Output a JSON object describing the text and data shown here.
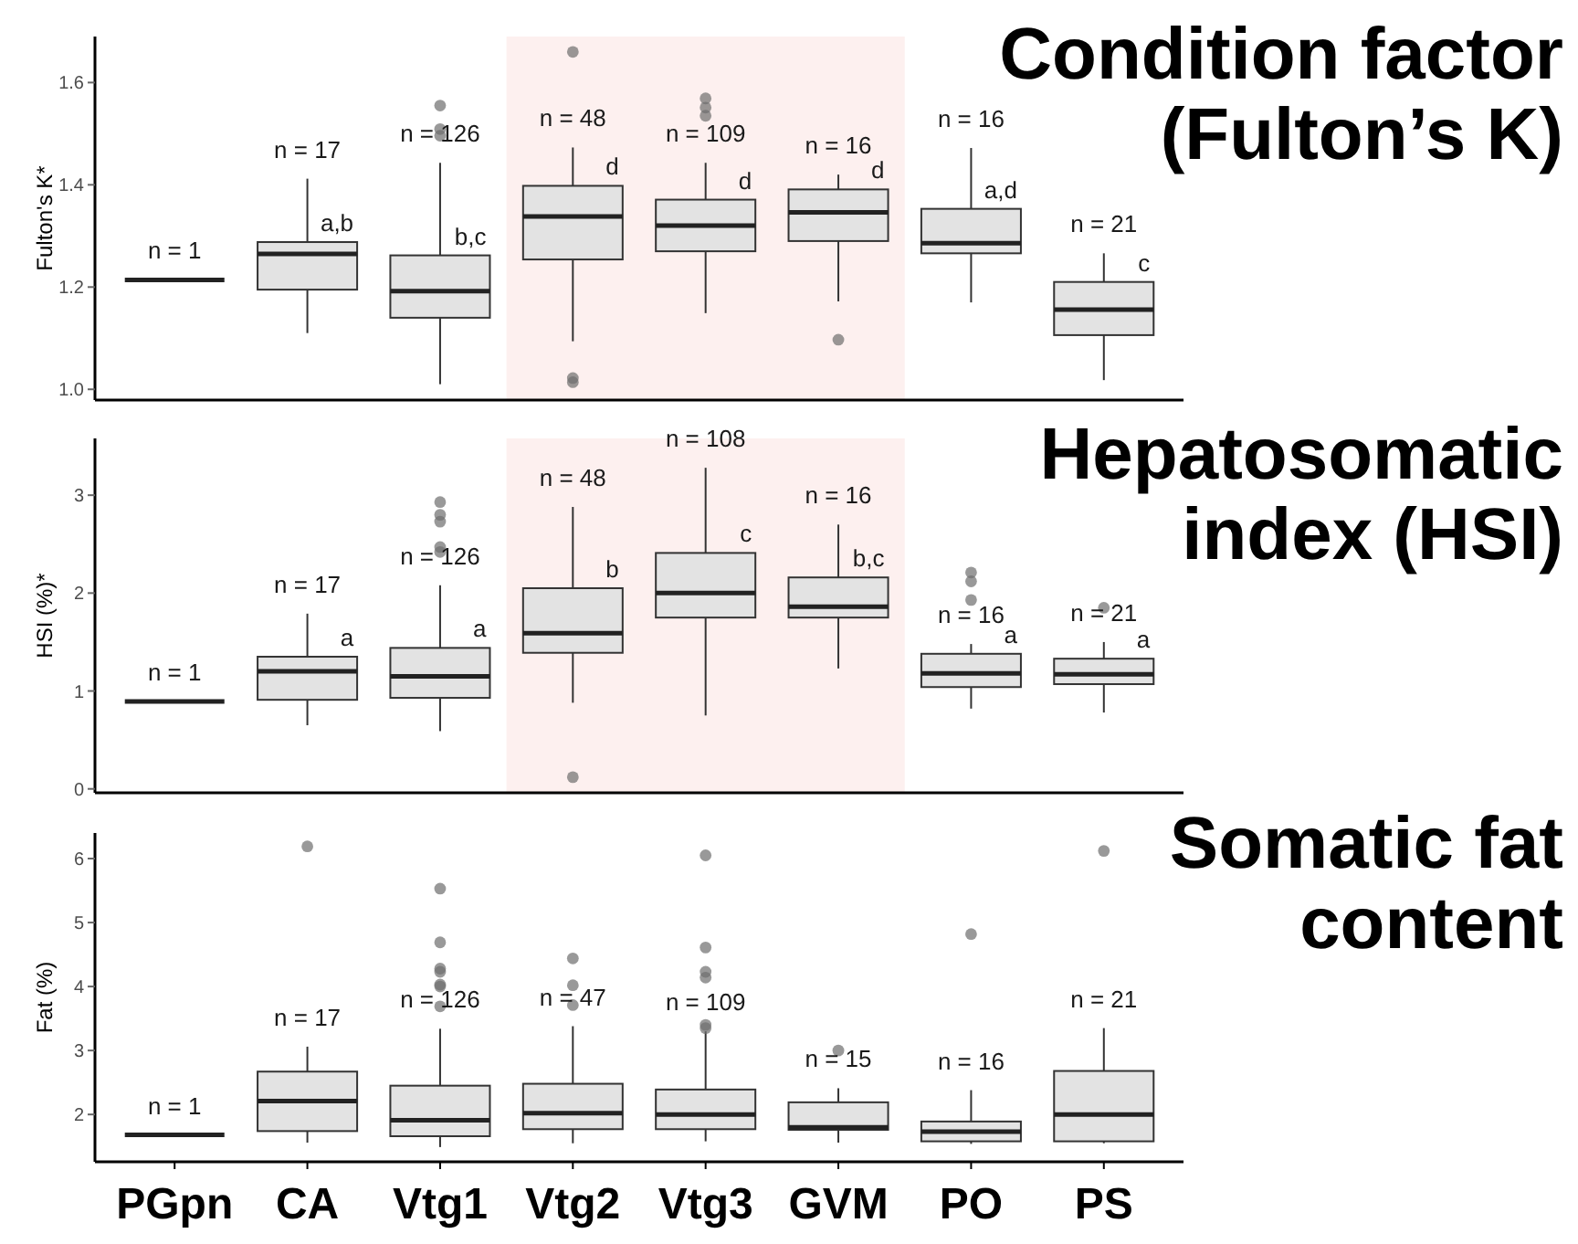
{
  "chart_data": [
    {
      "type": "box",
      "title": "Condition factor (Fulton’s K)",
      "ylabel": "Fulton's K*",
      "categories": [
        "PGpn",
        "CA",
        "Vtg1",
        "Vtg2",
        "Vtg3",
        "GVM",
        "PO",
        "PS"
      ],
      "colors": [
        "#222222",
        "#e3e3e3",
        "#e3e3e3",
        "#e3e3e3",
        "#e3e3e3",
        "#e3e3e3",
        "#e3e3e3",
        "#e3e3e3"
      ],
      "tick_labels": "y",
      "ylim": [
        0.979,
        1.69
      ],
      "yticks": [
        {
          "value": 1,
          "label": "1.0"
        },
        1.2,
        1.4,
        1.6
      ],
      "boxes": [
        {
          "low": 1.214,
          "q1": 1.214,
          "median": 1.214,
          "q3": 1.214,
          "high": 1.214
        },
        {
          "low": 1.11,
          "q1": 1.195,
          "median": 1.265,
          "q3": 1.288,
          "high": 1.412
        },
        {
          "low": 1.01,
          "q1": 1.14,
          "median": 1.192,
          "q3": 1.262,
          "high": 1.443,
          "outliers": [
            1.555,
            1.509,
            1.496
          ]
        },
        {
          "low": 1.094,
          "q1": 1.254,
          "median": 1.338,
          "q3": 1.398,
          "high": 1.473,
          "outliers": [
            1.66,
            1.022,
            1.014
          ]
        },
        {
          "low": 1.149,
          "q1": 1.27,
          "median": 1.32,
          "q3": 1.371,
          "high": 1.443,
          "outliers": [
            1.569,
            1.551,
            1.535
          ]
        },
        {
          "low": 1.172,
          "q1": 1.29,
          "median": 1.346,
          "q3": 1.391,
          "high": 1.42,
          "outliers": [
            1.097
          ]
        },
        {
          "low": 1.17,
          "q1": 1.266,
          "median": 1.286,
          "q3": 1.353,
          "high": 1.472
        },
        {
          "low": 1.018,
          "q1": 1.106,
          "median": 1.156,
          "q3": 1.21,
          "high": 1.266
        }
      ],
      "value_labels": [
        null,
        "a,b",
        "b,c",
        "d",
        "d",
        "d",
        "a,d",
        "c"
      ],
      "bands": [
        {
          "axis": "x",
          "from": "Vtg2",
          "to": "GVM",
          "color": "#fdf0ef"
        }
      ],
      "annotations": [
        "n = 1",
        "n = 17",
        "n = 126",
        "n = 48",
        "n = 109",
        "n = 16",
        "n = 16",
        "n = 21"
      ]
    },
    {
      "type": "box",
      "title": "Hepatosomatic index (HSI)",
      "ylabel": "HSI (%)*",
      "categories": [
        "PGpn",
        "CA",
        "Vtg1",
        "Vtg2",
        "Vtg3",
        "GVM",
        "PO",
        "PS"
      ],
      "colors": [
        "#222222",
        "#e3e3e3",
        "#e3e3e3",
        "#e3e3e3",
        "#e3e3e3",
        "#e3e3e3",
        "#e3e3e3",
        "#e3e3e3"
      ],
      "tick_labels": "y",
      "ylim": [
        -0.04,
        3.58
      ],
      "yticks": [
        0,
        1,
        2,
        3
      ],
      "boxes": [
        {
          "low": 0.894,
          "q1": 0.894,
          "median": 0.894,
          "q3": 0.894,
          "high": 0.894
        },
        {
          "low": 0.65,
          "q1": 0.91,
          "median": 1.2,
          "q3": 1.35,
          "high": 1.79
        },
        {
          "low": 0.59,
          "q1": 0.93,
          "median": 1.15,
          "q3": 1.44,
          "high": 2.08,
          "outliers": [
            2.93,
            2.8,
            2.73,
            2.47,
            2.42
          ]
        },
        {
          "low": 0.88,
          "q1": 1.39,
          "median": 1.59,
          "q3": 2.05,
          "high": 2.88,
          "outliers": [
            0.12
          ]
        },
        {
          "low": 0.75,
          "q1": 1.75,
          "median": 2.0,
          "q3": 2.41,
          "high": 3.28
        },
        {
          "low": 1.23,
          "q1": 1.75,
          "median": 1.86,
          "q3": 2.16,
          "high": 2.7
        },
        {
          "low": 0.82,
          "q1": 1.04,
          "median": 1.18,
          "q3": 1.38,
          "high": 1.48,
          "outliers": [
            2.21,
            2.12,
            1.93
          ]
        },
        {
          "low": 0.78,
          "q1": 1.07,
          "median": 1.17,
          "q3": 1.33,
          "high": 1.5,
          "outliers": [
            1.85
          ]
        }
      ],
      "value_labels": [
        null,
        "a",
        "a",
        "b",
        "c",
        "b,c",
        "a",
        "a"
      ],
      "bands": [
        {
          "axis": "x",
          "from": "Vtg2",
          "to": "GVM",
          "color": "#fdf0ef"
        }
      ],
      "annotations": [
        "n = 1",
        "n = 17",
        "n = 126",
        "n = 48",
        "n = 108",
        "n = 16",
        "n = 16",
        "n = 21"
      ]
    },
    {
      "type": "box",
      "title": "Somatic fat content",
      "ylabel": "Fat (%)",
      "categories": [
        "PGpn",
        "CA",
        "Vtg1",
        "Vtg2",
        "Vtg3",
        "GVM",
        "PO",
        "PS"
      ],
      "colors": [
        "#222222",
        "#e3e3e3",
        "#e3e3e3",
        "#e3e3e3",
        "#e3e3e3",
        "#e3e3e3",
        "#e3e3e3",
        "#e3e3e3"
      ],
      "ylim": [
        1.26,
        6.4
      ],
      "yticks": [
        2,
        3,
        4,
        5,
        6
      ],
      "boxes": [
        {
          "low": 1.68,
          "q1": 1.68,
          "median": 1.68,
          "q3": 1.68,
          "high": 1.68
        },
        {
          "low": 1.56,
          "q1": 1.74,
          "median": 2.21,
          "q3": 2.67,
          "high": 3.06,
          "outliers": [
            6.19
          ]
        },
        {
          "low": 1.49,
          "q1": 1.66,
          "median": 1.91,
          "q3": 2.45,
          "high": 3.34,
          "outliers": [
            5.53,
            4.69,
            4.28,
            4.23,
            4.03,
            4.0,
            3.69
          ]
        },
        {
          "low": 1.55,
          "q1": 1.77,
          "median": 2.02,
          "q3": 2.48,
          "high": 3.38,
          "outliers": [
            4.44,
            4.02,
            3.71
          ]
        },
        {
          "low": 1.58,
          "q1": 1.77,
          "median": 2.0,
          "q3": 2.39,
          "high": 3.3,
          "outliers": [
            6.05,
            4.61,
            4.23,
            4.14,
            3.4,
            3.35
          ]
        },
        {
          "low": 1.56,
          "q1": 1.76,
          "median": 1.8,
          "q3": 2.19,
          "high": 2.41,
          "outliers": [
            3.0
          ]
        },
        {
          "low": 1.54,
          "q1": 1.58,
          "median": 1.73,
          "q3": 1.89,
          "high": 2.38,
          "outliers": [
            4.82
          ]
        },
        {
          "low": 1.55,
          "q1": 1.58,
          "median": 2.0,
          "q3": 2.68,
          "high": 3.35,
          "outliers": [
            6.12
          ]
        }
      ],
      "annotations": [
        "n = 1",
        "n = 17",
        "n = 126",
        "n = 47",
        "n = 109",
        "n = 15",
        "n = 16",
        "n = 21"
      ]
    }
  ]
}
